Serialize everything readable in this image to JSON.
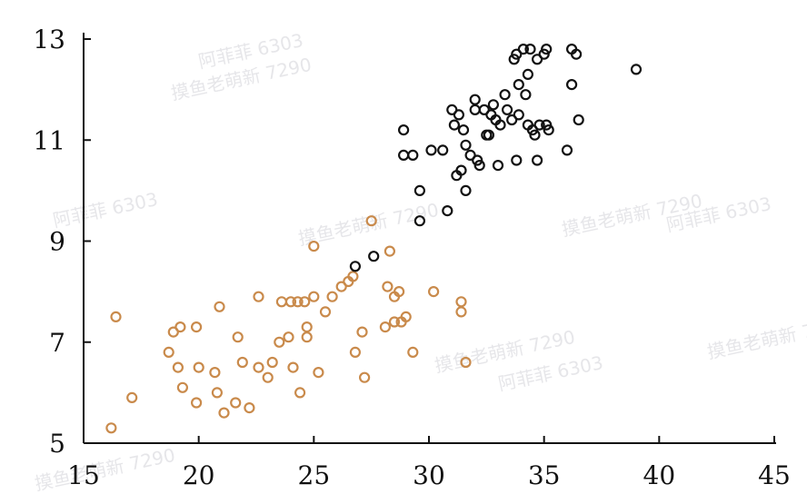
{
  "chart_data": {
    "type": "scatter",
    "title": "",
    "xlabel": "",
    "ylabel": "",
    "xlim": [
      15,
      45
    ],
    "ylim": [
      5,
      13.2
    ],
    "xticks": [
      15,
      20,
      25,
      30,
      35,
      40,
      45
    ],
    "yticks": [
      5,
      7,
      9,
      11,
      13
    ],
    "grid": false,
    "series": [
      {
        "color": "#c98a4b",
        "marker": "open-circle",
        "points": [
          [
            16.2,
            5.3
          ],
          [
            16.4,
            7.5
          ],
          [
            17.1,
            5.9
          ],
          [
            18.7,
            6.8
          ],
          [
            18.9,
            7.2
          ],
          [
            19.1,
            6.5
          ],
          [
            19.2,
            7.3
          ],
          [
            19.3,
            6.1
          ],
          [
            19.9,
            7.3
          ],
          [
            19.9,
            5.8
          ],
          [
            20.0,
            6.5
          ],
          [
            20.7,
            6.4
          ],
          [
            20.8,
            6.0
          ],
          [
            20.9,
            7.7
          ],
          [
            21.1,
            5.6
          ],
          [
            21.6,
            5.8
          ],
          [
            21.7,
            7.1
          ],
          [
            21.9,
            6.6
          ],
          [
            22.2,
            5.7
          ],
          [
            22.6,
            7.9
          ],
          [
            22.6,
            6.5
          ],
          [
            23.0,
            6.3
          ],
          [
            23.2,
            6.6
          ],
          [
            23.5,
            7.0
          ],
          [
            23.6,
            7.8
          ],
          [
            23.9,
            7.1
          ],
          [
            24.0,
            7.8
          ],
          [
            24.1,
            6.5
          ],
          [
            24.3,
            7.8
          ],
          [
            24.4,
            6.0
          ],
          [
            24.6,
            7.8
          ],
          [
            24.7,
            7.1
          ],
          [
            24.7,
            7.3
          ],
          [
            25.0,
            7.9
          ],
          [
            25.0,
            8.9
          ],
          [
            25.2,
            6.4
          ],
          [
            25.5,
            7.6
          ],
          [
            25.8,
            7.9
          ],
          [
            26.2,
            8.1
          ],
          [
            26.5,
            8.2
          ],
          [
            26.7,
            8.3
          ],
          [
            26.8,
            6.8
          ],
          [
            27.1,
            7.2
          ],
          [
            27.2,
            6.3
          ],
          [
            27.5,
            9.4
          ],
          [
            28.1,
            7.3
          ],
          [
            28.2,
            8.1
          ],
          [
            28.3,
            8.8
          ],
          [
            28.5,
            7.4
          ],
          [
            28.5,
            7.9
          ],
          [
            28.7,
            8.0
          ],
          [
            28.8,
            7.4
          ],
          [
            29.0,
            7.5
          ],
          [
            29.3,
            6.8
          ],
          [
            30.2,
            8.0
          ],
          [
            31.4,
            7.8
          ],
          [
            31.4,
            7.6
          ],
          [
            31.6,
            6.6
          ]
        ]
      },
      {
        "color": "#111111",
        "marker": "open-circle",
        "points": [
          [
            26.8,
            8.5
          ],
          [
            27.6,
            8.7
          ],
          [
            28.9,
            11.2
          ],
          [
            28.9,
            10.7
          ],
          [
            29.3,
            10.7
          ],
          [
            29.6,
            10.0
          ],
          [
            29.6,
            9.4
          ],
          [
            30.1,
            10.8
          ],
          [
            30.6,
            10.8
          ],
          [
            30.8,
            9.6
          ],
          [
            31.0,
            11.6
          ],
          [
            31.1,
            11.3
          ],
          [
            31.2,
            10.3
          ],
          [
            31.3,
            11.5
          ],
          [
            31.4,
            10.4
          ],
          [
            31.5,
            11.2
          ],
          [
            31.6,
            10.9
          ],
          [
            31.6,
            10.0
          ],
          [
            31.8,
            10.7
          ],
          [
            32.0,
            11.6
          ],
          [
            32.0,
            11.8
          ],
          [
            32.1,
            10.6
          ],
          [
            32.2,
            10.5
          ],
          [
            32.4,
            11.6
          ],
          [
            32.5,
            11.1
          ],
          [
            32.6,
            11.1
          ],
          [
            32.7,
            11.5
          ],
          [
            32.8,
            11.7
          ],
          [
            32.9,
            11.4
          ],
          [
            33.0,
            10.5
          ],
          [
            33.1,
            11.3
          ],
          [
            33.3,
            11.9
          ],
          [
            33.4,
            11.6
          ],
          [
            33.6,
            11.4
          ],
          [
            33.7,
            12.6
          ],
          [
            33.8,
            12.7
          ],
          [
            33.8,
            10.6
          ],
          [
            33.9,
            12.1
          ],
          [
            33.9,
            11.5
          ],
          [
            34.1,
            12.8
          ],
          [
            34.2,
            11.9
          ],
          [
            34.3,
            11.3
          ],
          [
            34.3,
            12.3
          ],
          [
            34.4,
            12.8
          ],
          [
            34.5,
            11.2
          ],
          [
            34.6,
            11.1
          ],
          [
            34.7,
            10.6
          ],
          [
            34.7,
            12.6
          ],
          [
            34.8,
            11.3
          ],
          [
            35.0,
            12.7
          ],
          [
            35.1,
            12.8
          ],
          [
            35.1,
            11.3
          ],
          [
            35.2,
            11.2
          ],
          [
            36.0,
            10.8
          ],
          [
            36.2,
            12.1
          ],
          [
            36.2,
            12.8
          ],
          [
            36.4,
            12.7
          ],
          [
            36.5,
            11.4
          ],
          [
            39.0,
            12.4
          ]
        ]
      }
    ],
    "watermarks": [
      "摸鱼老萌新 7290",
      "阿菲菲 6303"
    ]
  }
}
